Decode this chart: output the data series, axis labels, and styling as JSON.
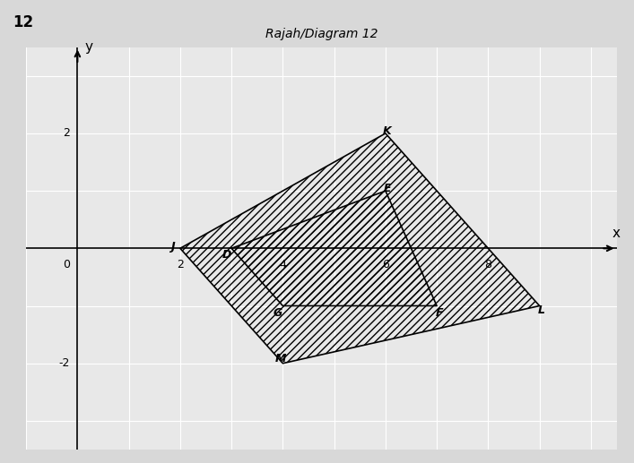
{
  "title": "Rajah/Diagram 12",
  "fig_label": "12",
  "xlim": [
    -1,
    10.5
  ],
  "ylim": [
    -3.5,
    3.5
  ],
  "xticks": [
    0,
    2,
    4,
    6,
    8
  ],
  "yticks": [
    -2,
    0,
    2
  ],
  "xlabel": "x",
  "ylabel": "y",
  "DEFG": [
    [
      3,
      0
    ],
    [
      6,
      1
    ],
    [
      7,
      -1
    ],
    [
      4,
      -1
    ]
  ],
  "JKLM": [
    [
      2,
      0
    ],
    [
      6,
      2
    ],
    [
      9,
      -1
    ],
    [
      4,
      -2
    ]
  ],
  "DEFG_labels": [
    [
      "D",
      [
        3,
        0
      ],
      [
        -8,
        -10
      ]
    ],
    [
      "E",
      [
        6,
        1
      ],
      [
        4,
        4
      ]
    ],
    [
      "F",
      [
        7,
        -1
      ],
      [
        4,
        -12
      ]
    ],
    [
      "G",
      [
        4,
        -1
      ],
      [
        -10,
        -12
      ]
    ]
  ],
  "JKLM_labels": [
    [
      "J",
      [
        2,
        0
      ],
      [
        -14,
        2
      ]
    ],
    [
      "K",
      [
        6,
        2
      ],
      [
        2,
        4
      ]
    ],
    [
      "L",
      [
        9,
        -1
      ],
      [
        4,
        -8
      ]
    ],
    [
      "M",
      [
        4,
        -2
      ],
      [
        -4,
        8
      ]
    ]
  ],
  "hatch_pattern": "////",
  "bg_color": "#d8d8d8",
  "plot_bg_color": "#e8e8e8",
  "grid_color": "#ffffff",
  "shape_edge_color": "#000000",
  "shape_face_color": "#c8c8c8"
}
